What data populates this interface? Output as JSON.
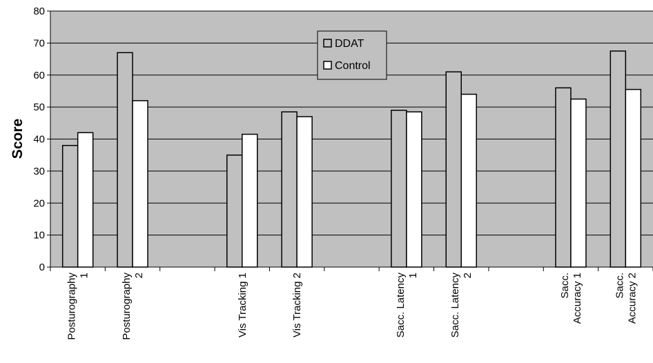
{
  "chart_data": {
    "type": "bar",
    "categories": [
      [
        "Posturography",
        "1"
      ],
      [
        "Posturography",
        "2"
      ],
      [
        "",
        ""
      ],
      [
        "Vis Tracking 1",
        ""
      ],
      [
        "Vis Tracking 2",
        ""
      ],
      [
        "",
        ""
      ],
      [
        "Sacc. Latency",
        "1"
      ],
      [
        "Sacc. Latency",
        "2"
      ],
      [
        "",
        ""
      ],
      [
        "Sacc.",
        "Accuracy 1"
      ],
      [
        "Sacc.",
        "Accuracy 2"
      ]
    ],
    "series": [
      {
        "name": "DDAT",
        "color": "#c0c0c0",
        "values": [
          38,
          67,
          null,
          35,
          48.5,
          null,
          49,
          61,
          null,
          56,
          67.5
        ]
      },
      {
        "name": "Control",
        "color": "#ffffff",
        "values": [
          42,
          52,
          null,
          41.5,
          47,
          null,
          48.5,
          54,
          null,
          52.5,
          55.5
        ]
      }
    ],
    "xlabel": "",
    "ylabel": "Score",
    "ylim": [
      0,
      80
    ],
    "yticks": [
      0,
      10,
      20,
      30,
      40,
      50,
      60,
      70,
      80
    ],
    "grid": true,
    "legend": "top-center",
    "plot_background": "#c0c0c0"
  }
}
